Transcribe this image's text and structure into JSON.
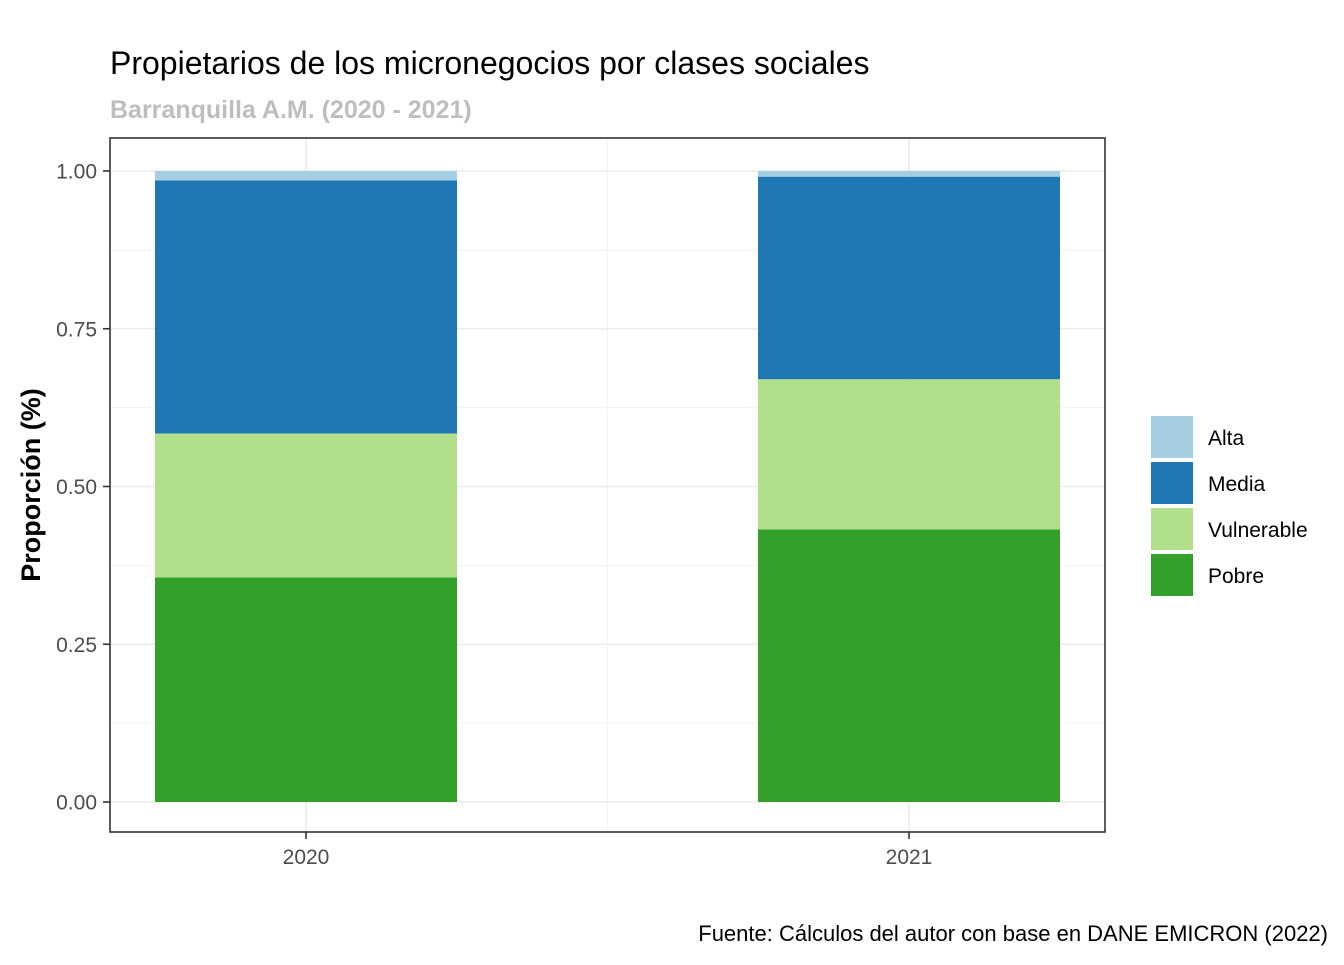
{
  "chart_data": {
    "type": "bar",
    "stacked": true,
    "title": "Propietarios de los micronegocios por clases sociales",
    "subtitle": "Barranquilla A.M. (2020 - 2021)",
    "xlabel": "",
    "ylabel": "Proporción (%)",
    "caption": "Fuente: Cálculos del autor con base en DANE EMICRON (2022)",
    "categories": [
      "2020",
      "2021"
    ],
    "ylim": [
      0,
      1
    ],
    "yticks": [
      "0.00",
      "0.25",
      "0.50",
      "0.75",
      "1.00"
    ],
    "ytick_values": [
      0,
      0.25,
      0.5,
      0.75,
      1.0
    ],
    "grid": true,
    "legend_position": "right",
    "series": [
      {
        "name": "Pobre",
        "color": "#33a02c",
        "values": [
          0.356,
          0.432
        ]
      },
      {
        "name": "Vulnerable",
        "color": "#b2df8a",
        "values": [
          0.228,
          0.238
        ]
      },
      {
        "name": "Media",
        "color": "#1f78b4",
        "values": [
          0.401,
          0.321
        ]
      },
      {
        "name": "Alta",
        "color": "#a6cee3",
        "values": [
          0.015,
          0.009
        ]
      }
    ],
    "legend_order": [
      "Alta",
      "Media",
      "Vulnerable",
      "Pobre"
    ]
  }
}
